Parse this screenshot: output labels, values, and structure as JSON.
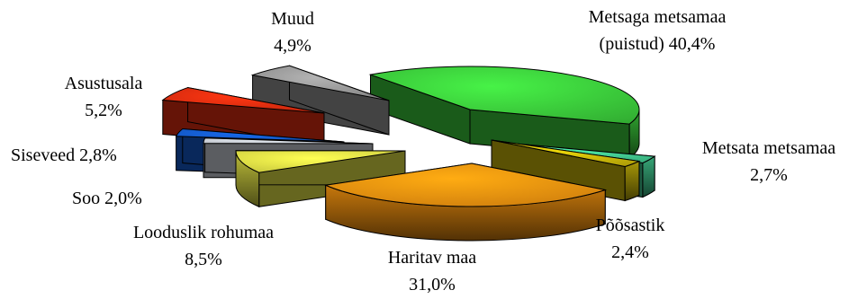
{
  "chart_data": {
    "type": "pie",
    "title": "",
    "series": [
      {
        "name": "Metsaga metsamaa (puistud)",
        "value": 40.4,
        "label": [
          "Metsaga metsamaa",
          "(puistud) 40,4%"
        ],
        "color": "#3fd83f"
      },
      {
        "name": "Metsata metsamaa",
        "value": 2.7,
        "label": [
          "Metsata metsamaa",
          "2,7%"
        ],
        "color": "#46d69a"
      },
      {
        "name": "Põõsastik",
        "value": 2.4,
        "label": [
          "Põõsastik",
          "2,4%"
        ],
        "color": "#d6c20a"
      },
      {
        "name": "Haritav maa",
        "value": 31.0,
        "label": [
          "Haritav maa",
          "31,0%"
        ],
        "color": "#ff9a10"
      },
      {
        "name": "Looduslik rohumaa",
        "value": 8.5,
        "label": [
          "Looduslik rohumaa",
          "8,5%"
        ],
        "color": "#f4f44a"
      },
      {
        "name": "Soo",
        "value": 2.0,
        "label": [
          "Soo 2,0%"
        ],
        "color": "#d8dde6"
      },
      {
        "name": "Siseveed",
        "value": 2.8,
        "label": [
          "Siseveed 2,8%"
        ],
        "color": "#1560d8"
      },
      {
        "name": "Asustusala",
        "value": 5.2,
        "label": [
          "Asustusala",
          "5,2%"
        ],
        "color": "#f03010"
      },
      {
        "name": "Muud",
        "value": 4.9,
        "label": [
          "Muud",
          "4,9%"
        ],
        "color": "#a0a0a0"
      }
    ]
  }
}
